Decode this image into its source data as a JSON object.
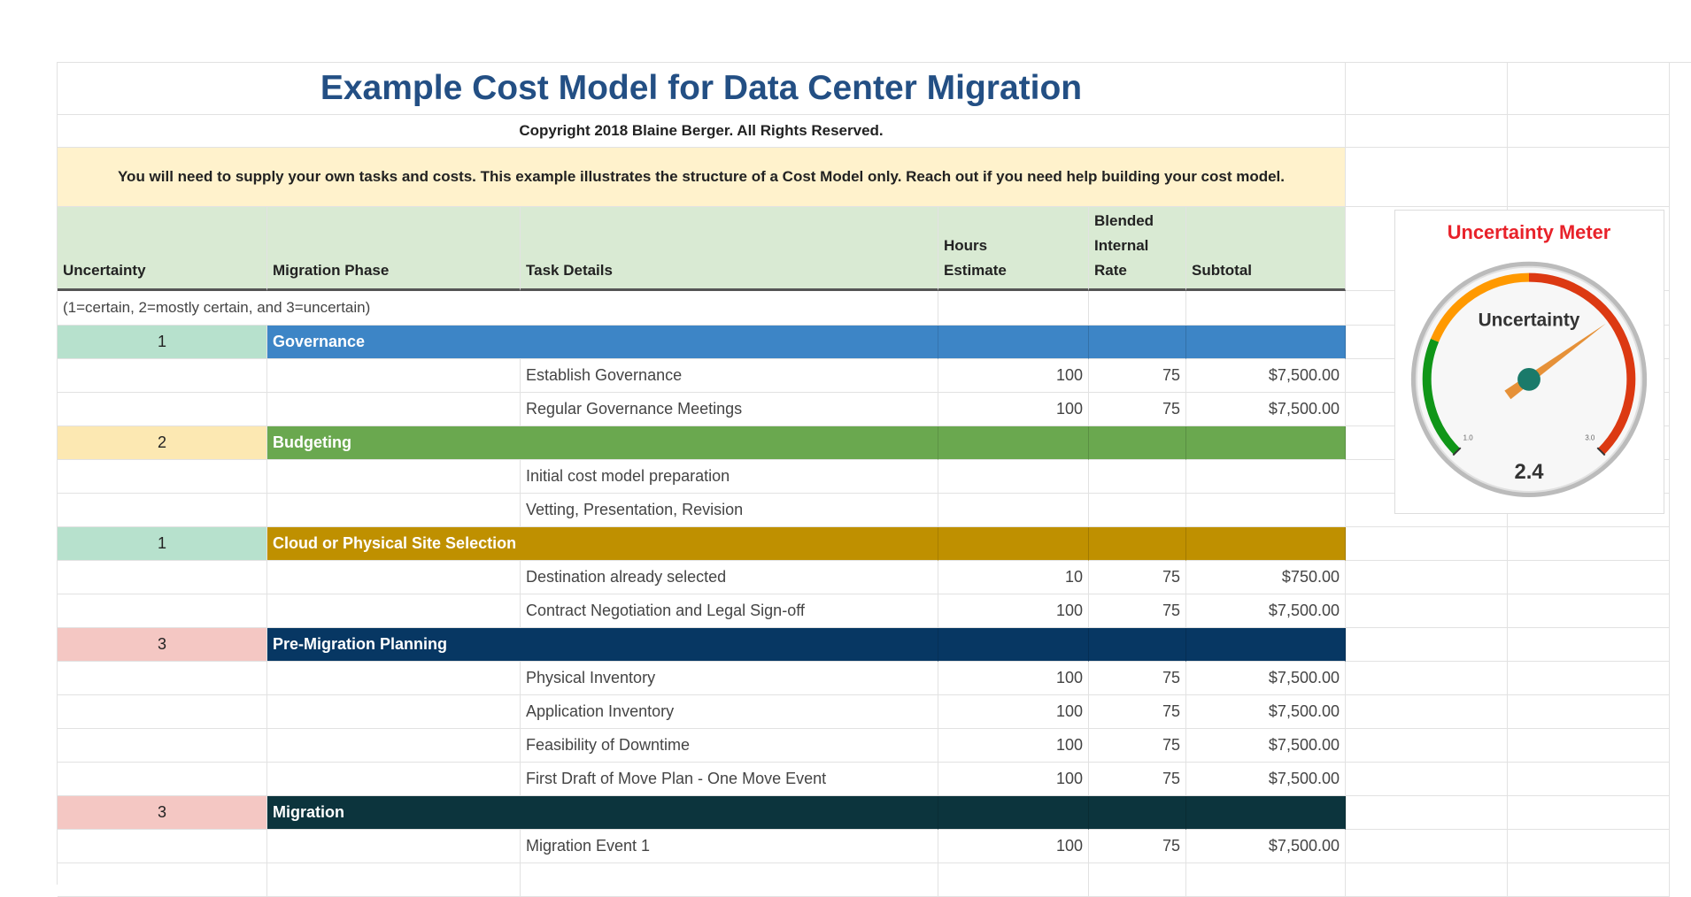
{
  "title": "Example Cost Model for Data Center Migration",
  "copyright": "Copyright 2018 Blaine Berger. All Rights Reserved.",
  "notice": "You will need to supply your own tasks and costs. This example illustrates the structure of a Cost Model only. Reach out if you need help building your cost model.",
  "table": {
    "headers": [
      "Uncertainty",
      "Migration Phase",
      "Task Details",
      "Hours Estimate",
      "Blended Internal Rate",
      "Subtotal"
    ],
    "scale_note": "(1=certain, 2=mostly certain, and 3=uncertain)",
    "phases": [
      {
        "uncertainty": 1,
        "uncertainty_color": "#b7e1cd",
        "name": "Governance",
        "color": "#3d85c6",
        "tasks": [
          {
            "task": "Establish Governance",
            "hours": 100,
            "rate": 75,
            "subtotal": "$7,500.00"
          },
          {
            "task": "Regular Governance Meetings",
            "hours": 100,
            "rate": 75,
            "subtotal": "$7,500.00"
          }
        ]
      },
      {
        "uncertainty": 2,
        "uncertainty_color": "#fce8b2",
        "name": "Budgeting",
        "color": "#6aa84f",
        "tasks": [
          {
            "task": "Initial cost model preparation"
          },
          {
            "task": "Vetting, Presentation, Revision"
          }
        ]
      },
      {
        "uncertainty": 1,
        "uncertainty_color": "#b7e1cd",
        "name": "Cloud or Physical Site Selection",
        "color": "#bf9000",
        "tasks": [
          {
            "task": "Destination already selected",
            "hours": 10,
            "rate": 75,
            "subtotal": "$750.00"
          },
          {
            "task": "Contract Negotiation and Legal Sign-off",
            "hours": 100,
            "rate": 75,
            "subtotal": "$7,500.00"
          }
        ]
      },
      {
        "uncertainty": 3,
        "uncertainty_color": "#f4c7c3",
        "name": "Pre-Migration Planning",
        "color": "#073763",
        "tasks": [
          {
            "task": "Physical Inventory",
            "hours": 100,
            "rate": 75,
            "subtotal": "$7,500.00"
          },
          {
            "task": "Application Inventory",
            "hours": 100,
            "rate": 75,
            "subtotal": "$7,500.00"
          },
          {
            "task": "Feasibility of Downtime",
            "hours": 100,
            "rate": 75,
            "subtotal": "$7,500.00"
          },
          {
            "task": "First Draft of Move Plan - One Move Event",
            "hours": 100,
            "rate": 75,
            "subtotal": "$7,500.00"
          }
        ]
      },
      {
        "uncertainty": 3,
        "uncertainty_color": "#f4c7c3",
        "name": "Migration",
        "color": "#0c343d",
        "tasks": [
          {
            "task": "Migration Event 1",
            "hours": 100,
            "rate": 75,
            "subtotal": "$7,500.00"
          }
        ]
      }
    ]
  },
  "gauge": {
    "title": "Uncertainty Meter",
    "label": "Uncertainty",
    "value": 2.4,
    "ticks": [
      {
        "value": 1,
        "label": "1.0"
      },
      {
        "value": 3,
        "label": "3.0"
      }
    ],
    "bands": [
      {
        "from": 1,
        "to": 1.5,
        "color": "#109618"
      },
      {
        "from": 1.5,
        "to": 2,
        "color": "#ff9900"
      },
      {
        "from": 2,
        "to": 3,
        "color": "#dc3912"
      }
    ],
    "needle_color": "#e69138"
  }
}
